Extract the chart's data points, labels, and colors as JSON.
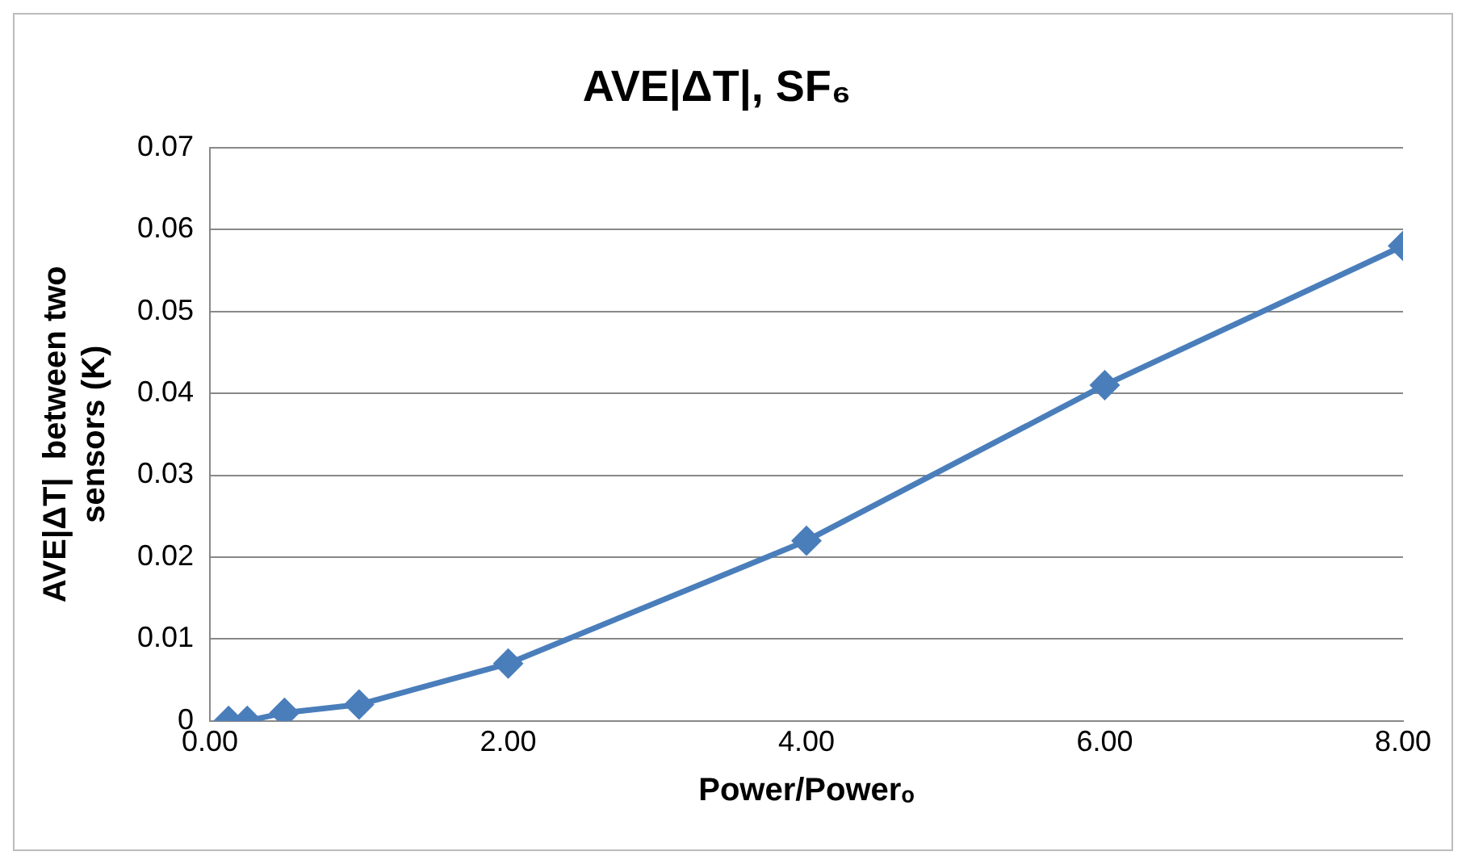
{
  "chart_data": {
    "type": "line",
    "title": "AVE|ΔT|, SF₆",
    "xlabel": "Power/Powerₒ",
    "ylabel": "AVE|ΔT|  between two\nsensors (K)",
    "x": [
      0.125,
      0.25,
      0.5,
      1,
      2,
      4,
      6,
      8
    ],
    "series": [
      {
        "color": "#4a7ebb",
        "values": [
          0,
          0,
          0.001,
          0.002,
          0.007,
          0.022,
          0.041,
          0.058
        ]
      }
    ],
    "xlim": [
      0,
      8
    ],
    "xticks": [
      {
        "value": 0,
        "label": "0.00"
      },
      {
        "value": 2,
        "label": "2.00"
      },
      {
        "value": 4,
        "label": "4.00"
      },
      {
        "value": 6,
        "label": "6.00"
      },
      {
        "value": 8,
        "label": "8.00"
      }
    ],
    "ylim": [
      0,
      0.07
    ],
    "yticks": [
      0,
      0.01,
      0.02,
      0.03,
      0.04,
      0.05,
      0.06,
      0.07
    ],
    "grid": "y",
    "legend": false,
    "marker": "diamond",
    "line_style": "solid"
  }
}
